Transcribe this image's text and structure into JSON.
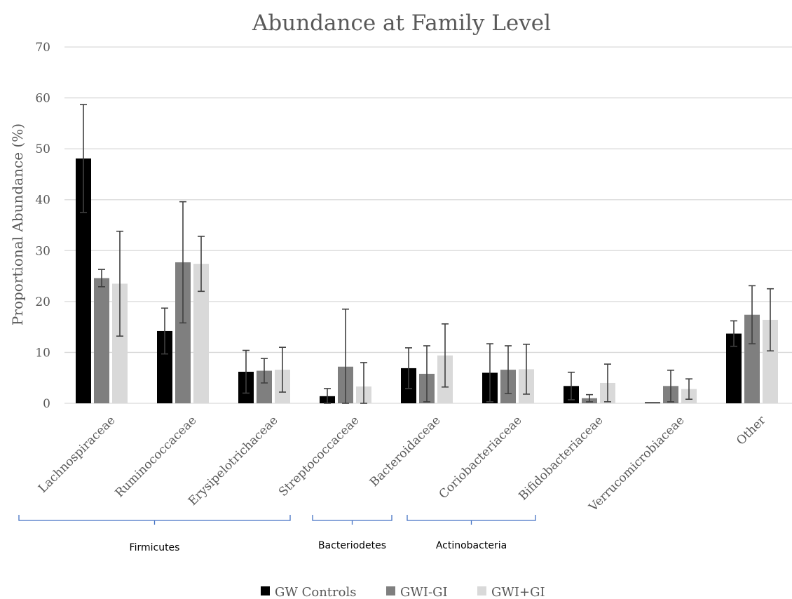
{
  "chart_data": {
    "type": "bar",
    "title": "Abundance at Family Level",
    "ylabel": "Proportional Abundance (%)",
    "xlabel": "",
    "ylim": [
      0,
      70
    ],
    "yticks": [
      "0",
      "10",
      "20",
      "30",
      "40",
      "50",
      "60",
      "70"
    ],
    "grid": true,
    "legend_position": "bottom",
    "categories": [
      "Lachnospiraceae",
      "Ruminococcaceae",
      "Erysipelotrichaceae",
      "Streptococcaceae",
      "Bacteroidaceae",
      "Coriobacteriaceae",
      "Bifidobacteriaceae",
      "Verrucomicrobiaceae",
      "Other"
    ],
    "series": [
      {
        "name": "GW Controls",
        "color": "#000000",
        "values": [
          48.1,
          14.2,
          6.2,
          1.4,
          6.9,
          6.0,
          3.4,
          0.2,
          13.7
        ],
        "error": [
          10.6,
          4.5,
          4.2,
          1.5,
          4.0,
          5.7,
          2.7,
          0.0,
          2.5
        ]
      },
      {
        "name": "GWI-GI",
        "color": "#7f7f7f",
        "values": [
          24.6,
          27.7,
          6.4,
          7.2,
          5.8,
          6.6,
          1.0,
          3.4,
          17.4
        ],
        "error": [
          1.7,
          11.9,
          2.4,
          11.3,
          5.5,
          4.7,
          0.7,
          3.1,
          5.7
        ]
      },
      {
        "name": "GWI+GI",
        "color": "#d9d9d9",
        "values": [
          23.5,
          27.4,
          6.6,
          3.3,
          9.4,
          6.7,
          4.0,
          2.8,
          16.4
        ],
        "error": [
          10.3,
          5.4,
          4.4,
          4.7,
          6.2,
          4.9,
          3.7,
          2.0,
          6.1
        ]
      }
    ],
    "groups": [
      {
        "label": "Firmicutes",
        "from": 0,
        "to": 2
      },
      {
        "label": "Bacteriodetes",
        "from": 3,
        "to": 4
      },
      {
        "label": "Actinobacteria",
        "from": 5,
        "to": 6
      }
    ],
    "group_bracket_color": "#4472c4"
  }
}
